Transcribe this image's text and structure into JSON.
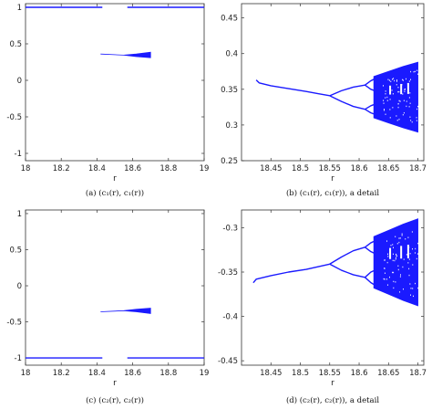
{
  "series_color": "#1a1aff",
  "chart_data": [
    {
      "type": "line",
      "panel": "a",
      "caption": "(a) (c₁(r), c₁(r))",
      "xlabel": "r",
      "ylabel": "",
      "xlim": [
        18,
        19
      ],
      "ylim": [
        -1.1,
        1.05
      ],
      "xticks": [
        18,
        18.2,
        18.4,
        18.6,
        18.8,
        19
      ],
      "xtick_labels": [
        "18",
        "18.2",
        "18.4",
        "18.6",
        "18.8",
        "19"
      ],
      "yticks": [
        -1,
        -0.5,
        0,
        0.5,
        1
      ],
      "ytick_labels": [
        "-1",
        "-0.5",
        "0",
        "0.5",
        "1"
      ],
      "grid": false,
      "lines": [
        {
          "x": [
            18.0,
            18.43
          ],
          "y": [
            1.0,
            1.0
          ]
        },
        {
          "x": [
            18.57,
            19.0
          ],
          "y": [
            1.0,
            1.0
          ]
        }
      ],
      "bands": [
        {
          "x": [
            18.42,
            18.55,
            18.62,
            18.7
          ],
          "lower": [
            0.36,
            0.345,
            0.325,
            0.31
          ],
          "upper": [
            0.36,
            0.345,
            0.36,
            0.385
          ]
        }
      ]
    },
    {
      "type": "line",
      "panel": "b",
      "caption": "(b) (c₁(r), c₁(r)), a detail",
      "xlabel": "r",
      "ylabel": "",
      "xlim": [
        18.4,
        18.71
      ],
      "ylim": [
        0.25,
        0.47
      ],
      "xticks": [
        18.45,
        18.5,
        18.55,
        18.6,
        18.65,
        18.7
      ],
      "xtick_labels": [
        "18.45",
        "18.5",
        "18.55",
        "18.6",
        "18.65",
        "18.7"
      ],
      "yticks": [
        0.25,
        0.3,
        0.35,
        0.4,
        0.45
      ],
      "ytick_labels": [
        "0.25",
        "0.3",
        "0.35",
        "0.4",
        "0.45"
      ],
      "grid": false,
      "lines": [
        {
          "x": [
            18.425,
            18.43,
            18.45,
            18.48,
            18.51,
            18.53,
            18.55
          ],
          "y": [
            0.363,
            0.359,
            0.355,
            0.351,
            0.347,
            0.344,
            0.341
          ]
        },
        {
          "x": [
            18.55,
            18.57,
            18.59,
            18.61
          ],
          "y": [
            0.341,
            0.348,
            0.353,
            0.356
          ]
        },
        {
          "x": [
            18.55,
            18.57,
            18.59,
            18.61
          ],
          "y": [
            0.341,
            0.333,
            0.326,
            0.322
          ]
        },
        {
          "x": [
            18.61,
            18.62,
            18.63
          ],
          "y": [
            0.356,
            0.362,
            0.366
          ]
        },
        {
          "x": [
            18.61,
            18.62,
            18.63
          ],
          "y": [
            0.356,
            0.35,
            0.347
          ]
        },
        {
          "x": [
            18.61,
            18.62,
            18.63
          ],
          "y": [
            0.322,
            0.327,
            0.33
          ]
        },
        {
          "x": [
            18.61,
            18.62,
            18.63
          ],
          "y": [
            0.322,
            0.317,
            0.314
          ]
        }
      ],
      "bands": [
        {
          "x": [
            18.625,
            18.65,
            18.675,
            18.7
          ],
          "lower": [
            0.31,
            0.303,
            0.296,
            0.29
          ],
          "upper": [
            0.368,
            0.375,
            0.382,
            0.388
          ]
        }
      ]
    },
    {
      "type": "line",
      "panel": "c",
      "caption": "(c) (c₂(r), c₂(r))",
      "xlabel": "r",
      "ylabel": "",
      "xlim": [
        18,
        19
      ],
      "ylim": [
        -1.1,
        1.05
      ],
      "xticks": [
        18,
        18.2,
        18.4,
        18.6,
        18.8,
        19
      ],
      "xtick_labels": [
        "18",
        "18.2",
        "18.4",
        "18.6",
        "18.8",
        "19"
      ],
      "yticks": [
        -1,
        -0.5,
        0,
        0.5,
        1
      ],
      "ytick_labels": [
        "-1",
        "-0.5",
        "0",
        "0.5",
        "1"
      ],
      "grid": false,
      "lines": [
        {
          "x": [
            18.0,
            18.43
          ],
          "y": [
            -1.0,
            -1.0
          ]
        },
        {
          "x": [
            18.57,
            19.0
          ],
          "y": [
            -1.0,
            -1.0
          ]
        }
      ],
      "bands": [
        {
          "x": [
            18.42,
            18.55,
            18.62,
            18.7
          ],
          "lower": [
            -0.36,
            -0.345,
            -0.36,
            -0.385
          ],
          "upper": [
            -0.36,
            -0.345,
            -0.325,
            -0.31
          ]
        }
      ]
    },
    {
      "type": "line",
      "panel": "d",
      "caption": "(d) (c₂(r), c₂(r)), a detail",
      "xlabel": "r",
      "ylabel": "",
      "xlim": [
        18.4,
        18.71
      ],
      "ylim": [
        -0.455,
        -0.28
      ],
      "xticks": [
        18.45,
        18.5,
        18.55,
        18.6,
        18.65,
        18.7
      ],
      "xtick_labels": [
        "18.45",
        "18.5",
        "18.55",
        "18.6",
        "18.65",
        "18.7"
      ],
      "yticks": [
        -0.45,
        -0.4,
        -0.35,
        -0.3
      ],
      "ytick_labels": [
        "-0.45",
        "-0.4",
        "-0.35",
        "-0.3"
      ],
      "grid": false,
      "lines": [
        {
          "x": [
            18.42,
            18.425,
            18.45,
            18.48,
            18.51,
            18.53,
            18.55
          ],
          "y": [
            -0.362,
            -0.358,
            -0.354,
            -0.35,
            -0.347,
            -0.344,
            -0.341
          ]
        },
        {
          "x": [
            18.55,
            18.57,
            18.59,
            18.61
          ],
          "y": [
            -0.341,
            -0.333,
            -0.326,
            -0.322
          ]
        },
        {
          "x": [
            18.55,
            18.57,
            18.59,
            18.61
          ],
          "y": [
            -0.341,
            -0.348,
            -0.353,
            -0.356
          ]
        },
        {
          "x": [
            18.61,
            18.62,
            18.63
          ],
          "y": [
            -0.322,
            -0.317,
            -0.314
          ]
        },
        {
          "x": [
            18.61,
            18.62,
            18.63
          ],
          "y": [
            -0.322,
            -0.327,
            -0.33
          ]
        },
        {
          "x": [
            18.61,
            18.62,
            18.63
          ],
          "y": [
            -0.356,
            -0.35,
            -0.347
          ]
        },
        {
          "x": [
            18.61,
            18.62,
            18.63
          ],
          "y": [
            -0.356,
            -0.362,
            -0.366
          ]
        }
      ],
      "bands": [
        {
          "x": [
            18.625,
            18.65,
            18.675,
            18.7
          ],
          "lower": [
            -0.368,
            -0.375,
            -0.382,
            -0.388
          ],
          "upper": [
            -0.31,
            -0.303,
            -0.296,
            -0.29
          ]
        }
      ]
    }
  ]
}
